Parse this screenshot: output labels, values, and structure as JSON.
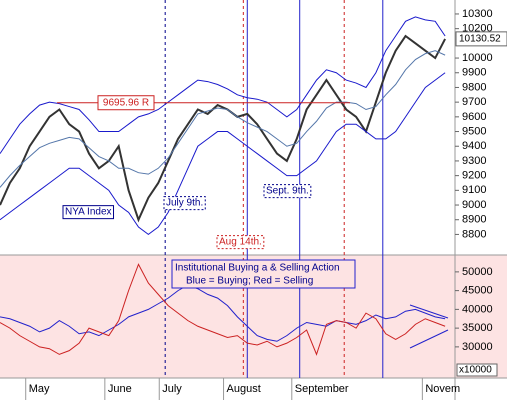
{
  "chart_data": [
    {
      "type": "line",
      "xlim": [
        0,
        46
      ],
      "ylim": [
        8660,
        10395
      ],
      "yticks": [
        8800,
        8900,
        9000,
        9100,
        9200,
        9300,
        9400,
        9500,
        9600,
        9700,
        9800,
        9900,
        10000,
        10200,
        10300
      ],
      "series": [
        {
          "color": "#333333",
          "width": 2,
          "values": [
            9000,
            9150,
            9250,
            9400,
            9500,
            9600,
            9650,
            9550,
            9500,
            9350,
            9250,
            9300,
            9400,
            9100,
            8900,
            9050,
            9150,
            9300,
            9450,
            9550,
            9650,
            9620,
            9680,
            9650,
            9600,
            9620,
            9550,
            9450,
            9350,
            9300,
            9450,
            9650,
            9750,
            9850,
            9750,
            9650,
            9600,
            9500,
            9700,
            9900,
            10050,
            10150,
            10100,
            10050,
            10000,
            10130
          ]
        },
        {
          "color": "#1a1acc",
          "width": 1,
          "values": [
            9350,
            9450,
            9550,
            9620,
            9680,
            9700,
            9690,
            9670,
            9650,
            9580,
            9500,
            9500,
            9500,
            9550,
            9600,
            9620,
            9650,
            9700,
            9750,
            9800,
            9850,
            9840,
            9820,
            9790,
            9750,
            9730,
            9720,
            9700,
            9650,
            9600,
            9650,
            9750,
            9850,
            9920,
            9900,
            9850,
            9830,
            9800,
            9900,
            10050,
            10150,
            10250,
            10280,
            10260,
            10250,
            10150
          ]
        },
        {
          "color": "#5577aa",
          "width": 1,
          "values": [
            9120,
            9200,
            9270,
            9330,
            9390,
            9420,
            9440,
            9460,
            9450,
            9390,
            9330,
            9300,
            9250,
            9250,
            9220,
            9210,
            9250,
            9320,
            9420,
            9520,
            9620,
            9640,
            9660,
            9650,
            9600,
            9560,
            9530,
            9500,
            9450,
            9400,
            9420,
            9500,
            9570,
            9660,
            9700,
            9700,
            9690,
            9650,
            9670,
            9750,
            9820,
            9920,
            9990,
            10030,
            10050,
            10020
          ]
        },
        {
          "color": "#1a1acc",
          "width": 1,
          "values": [
            8900,
            8950,
            9000,
            9050,
            9100,
            9150,
            9200,
            9250,
            9250,
            9200,
            9150,
            9100,
            9000,
            8950,
            8850,
            8800,
            8850,
            8950,
            9100,
            9250,
            9400,
            9450,
            9500,
            9500,
            9450,
            9400,
            9350,
            9300,
            9250,
            9200,
            9200,
            9250,
            9300,
            9400,
            9500,
            9550,
            9550,
            9500,
            9450,
            9450,
            9500,
            9600,
            9700,
            9800,
            9850,
            9900
          ]
        }
      ],
      "hline": {
        "value": 9695.96,
        "label": "9695.96 R",
        "color": "#cc2222"
      },
      "last_price": 10130.52,
      "annotations": [
        "NYA Index",
        "July 9th.",
        "Sept. 9th.",
        "Aug 14th."
      ]
    },
    {
      "type": "line",
      "xlim": [
        0,
        46
      ],
      "ylim": [
        21700,
        54500
      ],
      "yticks": [
        30000,
        35000,
        40000,
        45000,
        50000
      ],
      "multiplier_label": "x10000",
      "xticks": [
        {
          "value": 2.6,
          "label": "May"
        },
        {
          "value": 10.6,
          "label": "June"
        },
        {
          "value": 16.1,
          "label": "July"
        },
        {
          "value": 22.6,
          "label": "August"
        },
        {
          "value": 29.5,
          "label": "September"
        },
        {
          "value": 42.7,
          "label": "Novem"
        }
      ],
      "legend_text": [
        "Institutional Buying a & Selling Action",
        "Blue = Buying;  Red = Selling"
      ],
      "series": [
        {
          "color": "#2222cc",
          "values": [
            38000,
            37500,
            36500,
            35500,
            34000,
            35000,
            37000,
            35500,
            33500,
            34000,
            33000,
            34500,
            36000,
            38000,
            39000,
            40000,
            41500,
            43000,
            45000,
            46500,
            45500,
            44000,
            43000,
            41000,
            38000,
            35500,
            33000,
            32000,
            31500,
            33000,
            35000,
            36500,
            36000,
            35500,
            37000,
            36500,
            36000,
            37000,
            38500,
            37500,
            38000,
            39500,
            40000,
            39000,
            38000,
            37500
          ]
        },
        {
          "color": "#cc2222",
          "values": [
            36500,
            35000,
            33000,
            31500,
            30000,
            29500,
            28000,
            29000,
            31000,
            35000,
            34000,
            33000,
            37000,
            45000,
            52000,
            47000,
            44000,
            41000,
            39000,
            37000,
            35500,
            34500,
            33500,
            32500,
            33000,
            31000,
            30500,
            31500,
            30000,
            31000,
            32500,
            34500,
            28000,
            36000,
            37000,
            36500,
            35000,
            39000,
            37500,
            33500,
            32000,
            33500,
            36000,
            37500,
            36500,
            35500
          ]
        }
      ],
      "vlines": [
        {
          "x": 16.7,
          "color": "#00008b",
          "style": "dashed"
        },
        {
          "x": 24.6,
          "color": "#cc2222",
          "style": "dashed"
        },
        {
          "x": 25.0,
          "color": "#2222cc",
          "style": "solid"
        },
        {
          "x": 30.3,
          "color": "#2222cc",
          "style": "solid"
        },
        {
          "x": 34.8,
          "color": "#cc2222",
          "style": "dashed"
        },
        {
          "x": 38.7,
          "color": "#2222cc",
          "style": "solid"
        }
      ]
    }
  ]
}
